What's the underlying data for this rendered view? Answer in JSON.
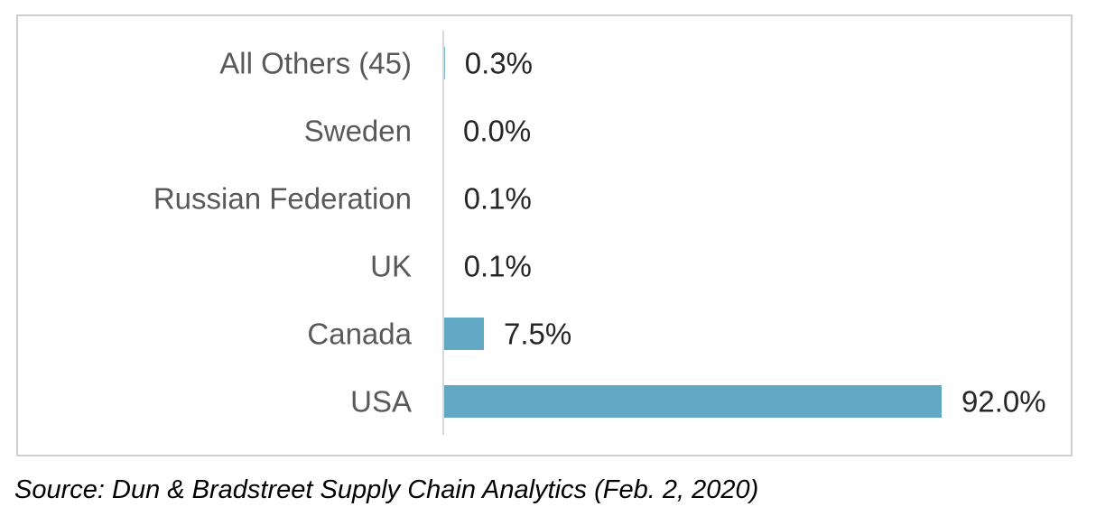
{
  "chart_data": {
    "type": "bar",
    "orientation": "horizontal",
    "categories": [
      "All Others (45)",
      "Sweden",
      "Russian Federation",
      "UK",
      "Canada",
      "USA"
    ],
    "values": [
      0.3,
      0.0,
      0.1,
      0.1,
      7.5,
      92.0
    ],
    "value_labels": [
      "0.3%",
      "0.0%",
      "0.1%",
      "0.1%",
      "7.5%",
      "92.0%"
    ],
    "xlim": [
      0,
      100
    ],
    "grid": false,
    "legend": "none",
    "bar_color": "#62a8c4",
    "axis_color": "#d9d9d9"
  },
  "source": "Source:  Dun & Bradstreet Supply Chain Analytics (Feb. 2, 2020)"
}
